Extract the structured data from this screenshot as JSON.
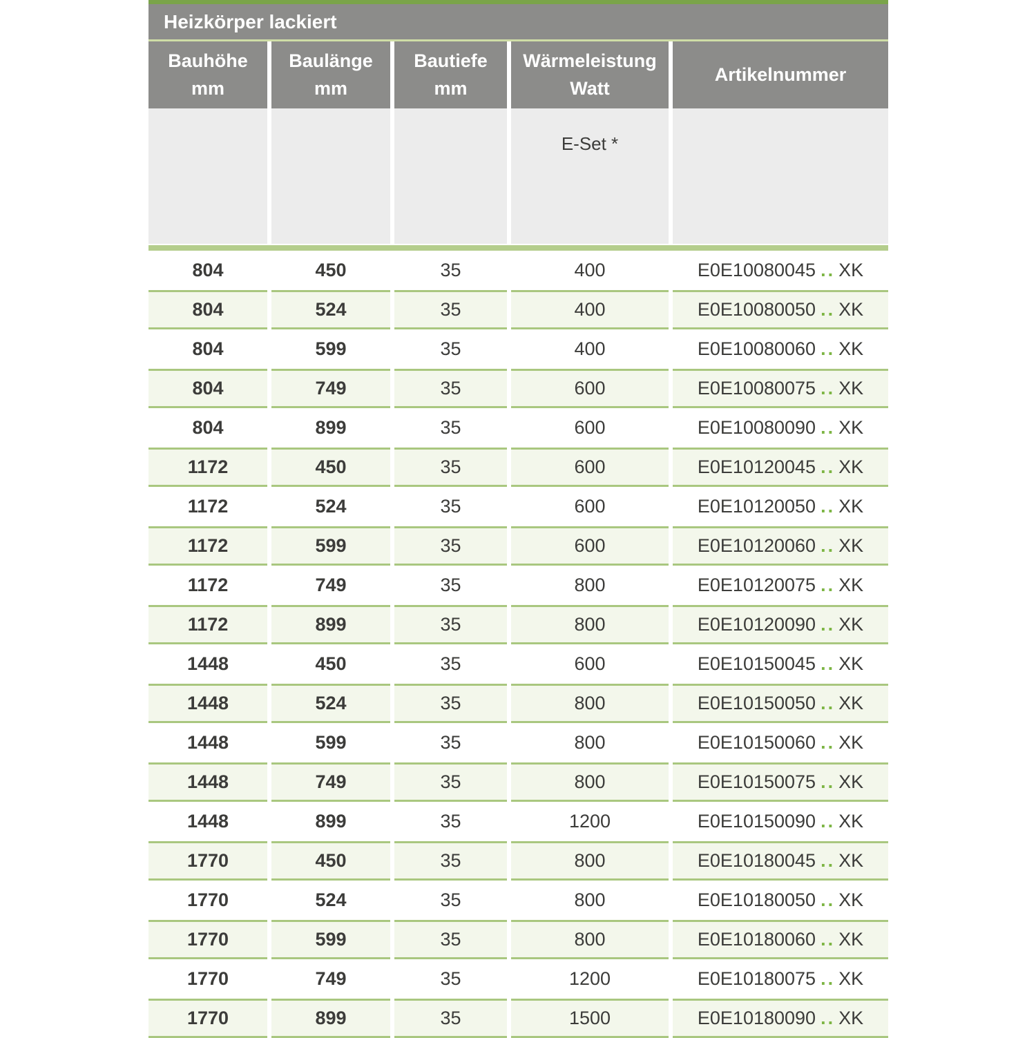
{
  "table": {
    "title": "Heizkörper lackiert",
    "columns": [
      {
        "id": "bauhoehe",
        "line1": "Bauhöhe",
        "line2": "mm"
      },
      {
        "id": "baulaenge",
        "line1": "Baulänge",
        "line2": "mm"
      },
      {
        "id": "bautiefe",
        "line1": "Bautiefe",
        "line2": "mm"
      },
      {
        "id": "waermeleistung",
        "line1": "Wärmeleistung",
        "line2": "Watt"
      },
      {
        "id": "artikelnummer",
        "line1": "Artikelnummer",
        "line2": ""
      }
    ],
    "subheader": {
      "eset": "E-Set *"
    },
    "rows": [
      {
        "bauhoehe": "804",
        "baulaenge": "450",
        "bautiefe": "35",
        "watt": "400",
        "artikel": {
          "prefix": "E0E10080045",
          "dots": "..",
          "suffix": "XK"
        }
      },
      {
        "bauhoehe": "804",
        "baulaenge": "524",
        "bautiefe": "35",
        "watt": "400",
        "artikel": {
          "prefix": "E0E10080050",
          "dots": "..",
          "suffix": "XK"
        }
      },
      {
        "bauhoehe": "804",
        "baulaenge": "599",
        "bautiefe": "35",
        "watt": "400",
        "artikel": {
          "prefix": "E0E10080060",
          "dots": "..",
          "suffix": "XK"
        }
      },
      {
        "bauhoehe": "804",
        "baulaenge": "749",
        "bautiefe": "35",
        "watt": "600",
        "artikel": {
          "prefix": "E0E10080075",
          "dots": "..",
          "suffix": "XK"
        }
      },
      {
        "bauhoehe": "804",
        "baulaenge": "899",
        "bautiefe": "35",
        "watt": "600",
        "artikel": {
          "prefix": "E0E10080090",
          "dots": "..",
          "suffix": "XK"
        }
      },
      {
        "bauhoehe": "1172",
        "baulaenge": "450",
        "bautiefe": "35",
        "watt": "600",
        "artikel": {
          "prefix": "E0E10120045",
          "dots": "..",
          "suffix": "XK"
        }
      },
      {
        "bauhoehe": "1172",
        "baulaenge": "524",
        "bautiefe": "35",
        "watt": "600",
        "artikel": {
          "prefix": "E0E10120050",
          "dots": "..",
          "suffix": "XK"
        }
      },
      {
        "bauhoehe": "1172",
        "baulaenge": "599",
        "bautiefe": "35",
        "watt": "600",
        "artikel": {
          "prefix": "E0E10120060",
          "dots": "..",
          "suffix": "XK"
        }
      },
      {
        "bauhoehe": "1172",
        "baulaenge": "749",
        "bautiefe": "35",
        "watt": "800",
        "artikel": {
          "prefix": "E0E10120075",
          "dots": "..",
          "suffix": "XK"
        }
      },
      {
        "bauhoehe": "1172",
        "baulaenge": "899",
        "bautiefe": "35",
        "watt": "800",
        "artikel": {
          "prefix": "E0E10120090",
          "dots": "..",
          "suffix": "XK"
        }
      },
      {
        "bauhoehe": "1448",
        "baulaenge": "450",
        "bautiefe": "35",
        "watt": "600",
        "artikel": {
          "prefix": "E0E10150045",
          "dots": "..",
          "suffix": "XK"
        }
      },
      {
        "bauhoehe": "1448",
        "baulaenge": "524",
        "bautiefe": "35",
        "watt": "800",
        "artikel": {
          "prefix": "E0E10150050",
          "dots": "..",
          "suffix": "XK"
        }
      },
      {
        "bauhoehe": "1448",
        "baulaenge": "599",
        "bautiefe": "35",
        "watt": "800",
        "artikel": {
          "prefix": "E0E10150060",
          "dots": "..",
          "suffix": "XK"
        }
      },
      {
        "bauhoehe": "1448",
        "baulaenge": "749",
        "bautiefe": "35",
        "watt": "800",
        "artikel": {
          "prefix": "E0E10150075",
          "dots": "..",
          "suffix": "XK"
        }
      },
      {
        "bauhoehe": "1448",
        "baulaenge": "899",
        "bautiefe": "35",
        "watt": "1200",
        "artikel": {
          "prefix": "E0E10150090",
          "dots": "..",
          "suffix": "XK"
        }
      },
      {
        "bauhoehe": "1770",
        "baulaenge": "450",
        "bautiefe": "35",
        "watt": "800",
        "artikel": {
          "prefix": "E0E10180045",
          "dots": "..",
          "suffix": "XK"
        }
      },
      {
        "bauhoehe": "1770",
        "baulaenge": "524",
        "bautiefe": "35",
        "watt": "800",
        "artikel": {
          "prefix": "E0E10180050",
          "dots": "..",
          "suffix": "XK"
        }
      },
      {
        "bauhoehe": "1770",
        "baulaenge": "599",
        "bautiefe": "35",
        "watt": "800",
        "artikel": {
          "prefix": "E0E10180060",
          "dots": "..",
          "suffix": "XK"
        }
      },
      {
        "bauhoehe": "1770",
        "baulaenge": "749",
        "bautiefe": "35",
        "watt": "1200",
        "artikel": {
          "prefix": "E0E10180075",
          "dots": "..",
          "suffix": "XK"
        }
      },
      {
        "bauhoehe": "1770",
        "baulaenge": "899",
        "bautiefe": "35",
        "watt": "1500",
        "artikel": {
          "prefix": "E0E10180090",
          "dots": "..",
          "suffix": "XK"
        }
      }
    ]
  },
  "colors": {
    "accent_green": "#7aa449",
    "thin_line_green": "#cfdda6",
    "separator_green": "#b4cd8c",
    "row_border_green": "#a9c77f",
    "row_bg_green": "#f3f7eb",
    "header_gray": "#8c8c8a",
    "subheader_gray": "#ececec",
    "dots_green": "#7db544",
    "text_dark": "#3c3c3a"
  }
}
